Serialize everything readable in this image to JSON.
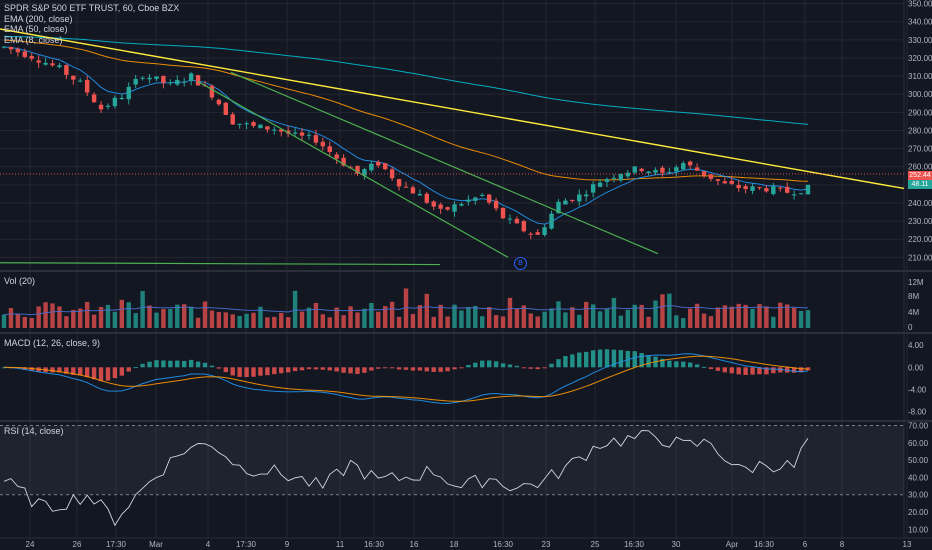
{
  "header": {
    "symbol_line": "SPDR S&P 500 ETF TRUST, 60, Cboe BZX",
    "legend_lines": [
      "EMA (200, close)",
      "EMA (50, close)",
      "EMA (8, close)"
    ]
  },
  "panes": {
    "volume_label": "Vol (20)",
    "macd_label": "MACD (12, 26, close, 9)",
    "rsi_label": "RSI (14, close)"
  },
  "price_tags": {
    "upper": "252.44",
    "lower": "48.11"
  },
  "marker_label": "B",
  "colors": {
    "background": "#131722",
    "grid": "#242733",
    "up": "#26a69a",
    "down": "#ef5350",
    "ema200": "#00bcd4",
    "ema50": "#ff9800",
    "ema8": "#2196f3",
    "trendline": "#ffeb3b",
    "channel": "#4caf50",
    "rsi_line": "#d1d4dc",
    "rsi_band": "#787b86"
  },
  "chart_data": [
    {
      "type": "candlestick",
      "title": "SPDR S&P 500 ETF TRUST, 60, Cboe BZX",
      "x_ticks": [
        "24",
        "26",
        "17:30",
        "Mar",
        "4",
        "17:30",
        "9",
        "11",
        "16:30",
        "16",
        "18",
        "16:30",
        "23",
        "25",
        "16:30",
        "30",
        "Apr",
        "16:30",
        "6",
        "8",
        "13"
      ],
      "y_ticks": [
        210,
        220,
        230,
        240,
        250,
        260,
        270,
        280,
        290,
        300,
        310,
        320,
        330,
        340,
        350
      ],
      "ylim": [
        203,
        352
      ],
      "approx_close_path": [
        {
          "x": 0,
          "y": 326
        },
        {
          "x": 4,
          "y": 321
        },
        {
          "x": 8,
          "y": 314
        },
        {
          "x": 11,
          "y": 306
        },
        {
          "x": 14,
          "y": 292
        },
        {
          "x": 17,
          "y": 299
        },
        {
          "x": 20,
          "y": 311
        },
        {
          "x": 24,
          "y": 305
        },
        {
          "x": 27,
          "y": 310
        },
        {
          "x": 30,
          "y": 300
        },
        {
          "x": 33,
          "y": 285
        },
        {
          "x": 36,
          "y": 282
        },
        {
          "x": 39,
          "y": 281
        },
        {
          "x": 42,
          "y": 277
        },
        {
          "x": 45,
          "y": 275
        },
        {
          "x": 48,
          "y": 265
        },
        {
          "x": 51,
          "y": 256
        },
        {
          "x": 54,
          "y": 262
        },
        {
          "x": 57,
          "y": 251
        },
        {
          "x": 60,
          "y": 244
        },
        {
          "x": 63,
          "y": 235
        },
        {
          "x": 66,
          "y": 240
        },
        {
          "x": 69,
          "y": 244
        },
        {
          "x": 72,
          "y": 232
        },
        {
          "x": 75,
          "y": 225
        },
        {
          "x": 77,
          "y": 222
        },
        {
          "x": 80,
          "y": 240
        },
        {
          "x": 83,
          "y": 244
        },
        {
          "x": 86,
          "y": 252
        },
        {
          "x": 89,
          "y": 257
        },
        {
          "x": 92,
          "y": 259
        },
        {
          "x": 95,
          "y": 256
        },
        {
          "x": 98,
          "y": 262
        },
        {
          "x": 101,
          "y": 256
        },
        {
          "x": 104,
          "y": 250
        },
        {
          "x": 107,
          "y": 248
        },
        {
          "x": 110,
          "y": 248
        },
        {
          "x": 113,
          "y": 246
        },
        {
          "x": 116,
          "y": 248
        }
      ],
      "series_lines": [
        "EMA (200, close)",
        "EMA (50, close)",
        "EMA (8, close)"
      ],
      "last_values": [
        "252.44",
        "48.11"
      ]
    },
    {
      "type": "bar",
      "title": "Vol (20)",
      "y_ticks": [
        "8M",
        "4M",
        "0",
        "12M"
      ]
    },
    {
      "type": "bar",
      "title": "MACD (12, 26, close, 9)",
      "y_ticks": [
        "4.00",
        "0.00",
        "-4.00",
        "-8.00"
      ],
      "ylim": [
        -9.5,
        6
      ]
    },
    {
      "type": "line",
      "title": "RSI (14, close)",
      "y_ticks": [
        70,
        60,
        50,
        40,
        30,
        20,
        10
      ],
      "ylim": [
        5,
        72
      ],
      "bands": [
        70,
        30
      ],
      "approx_values": [
        {
          "x": 0,
          "y": 38
        },
        {
          "x": 6,
          "y": 22
        },
        {
          "x": 12,
          "y": 30
        },
        {
          "x": 16,
          "y": 16
        },
        {
          "x": 22,
          "y": 42
        },
        {
          "x": 26,
          "y": 56
        },
        {
          "x": 30,
          "y": 60
        },
        {
          "x": 34,
          "y": 46
        },
        {
          "x": 38,
          "y": 44
        },
        {
          "x": 42,
          "y": 40
        },
        {
          "x": 46,
          "y": 34
        },
        {
          "x": 50,
          "y": 48
        },
        {
          "x": 54,
          "y": 38
        },
        {
          "x": 58,
          "y": 40
        },
        {
          "x": 62,
          "y": 44
        },
        {
          "x": 66,
          "y": 34
        },
        {
          "x": 70,
          "y": 40
        },
        {
          "x": 74,
          "y": 34
        },
        {
          "x": 78,
          "y": 38
        },
        {
          "x": 82,
          "y": 48
        },
        {
          "x": 86,
          "y": 60
        },
        {
          "x": 90,
          "y": 62
        },
        {
          "x": 94,
          "y": 64
        },
        {
          "x": 98,
          "y": 58
        },
        {
          "x": 102,
          "y": 60
        },
        {
          "x": 106,
          "y": 44
        },
        {
          "x": 110,
          "y": 48
        },
        {
          "x": 114,
          "y": 46
        },
        {
          "x": 116,
          "y": 62
        }
      ]
    }
  ]
}
